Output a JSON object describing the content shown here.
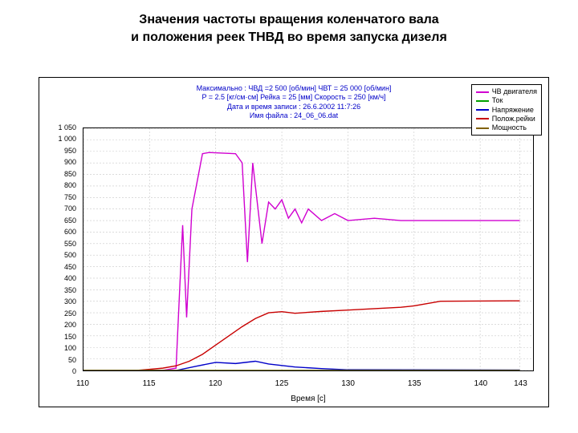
{
  "title_line1": "Значения частоты вращения коленчатого вала",
  "title_line2": "и положения реек ТНВД во время запуска дизеля",
  "header": {
    "line1": "Максимально : ЧВД =2 500 [об/мин]   ЧВТ = 25 000 [об/мин]",
    "line2": "P = 2.5 [кг/см·см]   Рейка = 25 [мм]   Скорость = 250 [км/ч]",
    "line3": "Дата и время записи : 26.6.2002 11:7:26",
    "line4": "Имя файла : 24_06_06.dat"
  },
  "legend": {
    "items": [
      {
        "label": "ЧВ двигателя",
        "color": "#d000d0"
      },
      {
        "label": "Ток",
        "color": "#00a000"
      },
      {
        "label": "Напряжение",
        "color": "#0000c8"
      },
      {
        "label": "Полож.рейки",
        "color": "#c80000"
      },
      {
        "label": "Мощность",
        "color": "#806000"
      }
    ]
  },
  "chart": {
    "xlim": [
      110,
      144
    ],
    "ylim": [
      0,
      1050
    ],
    "xticks": [
      110,
      115,
      120,
      125,
      130,
      135,
      140,
      143
    ],
    "xtick_labels": [
      "110",
      "115",
      "120",
      "125",
      "130",
      "135",
      "140",
      "143"
    ],
    "yticks": [
      0,
      50,
      100,
      150,
      200,
      250,
      300,
      350,
      400,
      450,
      500,
      550,
      600,
      650,
      700,
      750,
      800,
      850,
      900,
      950,
      1000,
      1050
    ],
    "ytick_labels": [
      "0",
      "50",
      "100",
      "150",
      "200",
      "250",
      "300",
      "350",
      "400",
      "450",
      "500",
      "550",
      "600",
      "650",
      "700",
      "750",
      "800",
      "850",
      "900",
      "950",
      "1 000",
      "1 050"
    ],
    "xlabel": "Время [с]",
    "background_color": "#ffffff",
    "grid_color": "#c8c8c8",
    "series": {
      "rpm": {
        "color": "#d000d0",
        "points": [
          [
            110,
            0
          ],
          [
            116,
            0
          ],
          [
            117,
            10
          ],
          [
            117.5,
            630
          ],
          [
            117.8,
            230
          ],
          [
            118.2,
            700
          ],
          [
            119,
            940
          ],
          [
            119.5,
            945
          ],
          [
            121.5,
            940
          ],
          [
            122,
            900
          ],
          [
            122.4,
            470
          ],
          [
            122.8,
            900
          ],
          [
            123.5,
            550
          ],
          [
            124,
            730
          ],
          [
            124.5,
            700
          ],
          [
            125,
            740
          ],
          [
            125.5,
            660
          ],
          [
            126,
            700
          ],
          [
            126.5,
            640
          ],
          [
            127,
            700
          ],
          [
            128,
            650
          ],
          [
            129,
            680
          ],
          [
            130,
            650
          ],
          [
            132,
            660
          ],
          [
            134,
            650
          ],
          [
            138,
            650
          ],
          [
            143,
            650
          ]
        ]
      },
      "rack": {
        "color": "#c80000",
        "points": [
          [
            110,
            0
          ],
          [
            114,
            0
          ],
          [
            115,
            5
          ],
          [
            116,
            10
          ],
          [
            117,
            20
          ],
          [
            118,
            40
          ],
          [
            119,
            70
          ],
          [
            120,
            110
          ],
          [
            121,
            150
          ],
          [
            122,
            190
          ],
          [
            123,
            225
          ],
          [
            124,
            250
          ],
          [
            125,
            255
          ],
          [
            126,
            248
          ],
          [
            128,
            256
          ],
          [
            130,
            262
          ],
          [
            132,
            268
          ],
          [
            134,
            274
          ],
          [
            135,
            280
          ],
          [
            136,
            290
          ],
          [
            137,
            300
          ],
          [
            143,
            302
          ]
        ]
      },
      "voltage": {
        "color": "#0000c8",
        "points": [
          [
            110,
            0
          ],
          [
            117,
            0
          ],
          [
            118.5,
            18
          ],
          [
            120,
            35
          ],
          [
            121.5,
            30
          ],
          [
            123,
            40
          ],
          [
            124,
            28
          ],
          [
            126,
            15
          ],
          [
            128,
            8
          ],
          [
            130,
            3
          ],
          [
            143,
            2
          ]
        ]
      },
      "current": {
        "color": "#00a000",
        "points": [
          [
            110,
            0
          ],
          [
            143,
            0
          ]
        ]
      },
      "power": {
        "color": "#806000",
        "points": [
          [
            110,
            0
          ],
          [
            143,
            0
          ]
        ]
      }
    }
  }
}
